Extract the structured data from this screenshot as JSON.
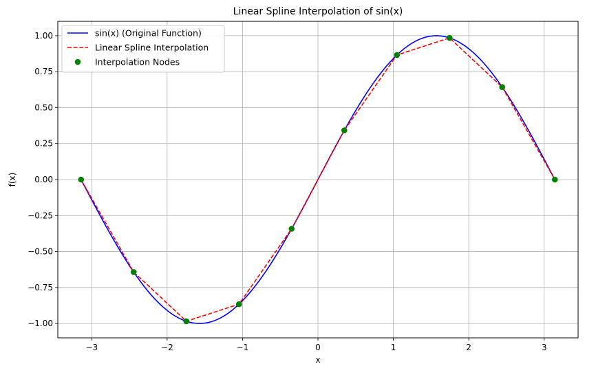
{
  "chart_data": {
    "type": "line",
    "title": "Linear Spline Interpolation of sin(x)",
    "xlabel": "x",
    "ylabel": "f(x)",
    "xlim": [
      -3.45,
      3.45
    ],
    "ylim": [
      -1.1,
      1.1
    ],
    "xticks": [
      -3,
      -2,
      -1,
      0,
      1,
      2,
      3
    ],
    "xtick_labels": [
      "−3",
      "−2",
      "−1",
      "0",
      "1",
      "2",
      "3"
    ],
    "yticks": [
      -1.0,
      -0.75,
      -0.5,
      -0.25,
      0.0,
      0.25,
      0.5,
      0.75,
      1.0
    ],
    "ytick_labels": [
      "−1.00",
      "−0.75",
      "−0.50",
      "−0.25",
      "0.00",
      "0.25",
      "0.50",
      "0.75",
      "1.00"
    ],
    "grid": true,
    "legend_position": "top-left",
    "series": [
      {
        "name": "sin(x) (Original Function)",
        "kind": "line",
        "style": "solid",
        "color": "#0000ff",
        "function": "sin",
        "domain": [
          -3.14159,
          3.14159
        ]
      },
      {
        "name": "Linear Spline Interpolation",
        "kind": "line",
        "style": "dashed",
        "color": "#ff0000",
        "x": [
          -3.1416,
          -2.4435,
          -1.7453,
          -1.0472,
          -0.3491,
          0.3491,
          1.0472,
          1.7453,
          2.4435,
          3.1416
        ],
        "y": [
          0.0,
          -0.6428,
          -0.9848,
          -0.866,
          -0.342,
          0.342,
          0.866,
          0.9848,
          0.6428,
          0.0
        ]
      },
      {
        "name": "Interpolation Nodes",
        "kind": "scatter",
        "color": "#008000",
        "x": [
          -3.1416,
          -2.4435,
          -1.7453,
          -1.0472,
          -0.3491,
          0.3491,
          1.0472,
          1.7453,
          2.4435,
          3.1416
        ],
        "y": [
          0.0,
          -0.6428,
          -0.9848,
          -0.866,
          -0.342,
          0.342,
          0.866,
          0.9848,
          0.6428,
          0.0
        ]
      }
    ]
  }
}
